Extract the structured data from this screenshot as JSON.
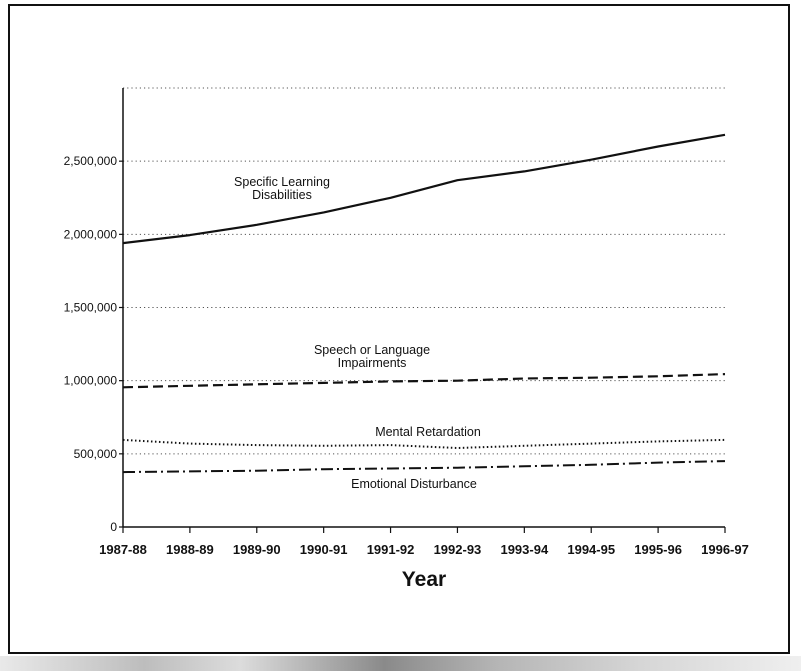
{
  "chart_data": {
    "type": "line",
    "title": "",
    "xlabel": "Year",
    "ylabel": "",
    "categories": [
      "1987-88",
      "1988-89",
      "1989-90",
      "1990-91",
      "1991-92",
      "1992-93",
      "1993-94",
      "1994-95",
      "1995-96",
      "1996-97"
    ],
    "ylim": [
      0,
      3000000
    ],
    "yticks": [
      0,
      500000,
      1000000,
      1500000,
      2000000,
      2500000
    ],
    "ytick_labels": [
      "0",
      "500,000",
      "1,000,000",
      "1,500,000",
      "2,000,000",
      "2,500,000"
    ],
    "grid": true,
    "legend": "none",
    "series": [
      {
        "name": "Specific Learning Disabilities",
        "annotation_lines": [
          "Specific Learning",
          "Disabilities"
        ],
        "style": "solid",
        "values": [
          1940000,
          1995000,
          2065000,
          2150000,
          2250000,
          2370000,
          2430000,
          2510000,
          2600000,
          2680000
        ]
      },
      {
        "name": "Speech or Language Impairments",
        "annotation_lines": [
          "Speech or Language",
          "Impairments"
        ],
        "style": "dashed",
        "values": [
          955000,
          965000,
          975000,
          985000,
          995000,
          1000000,
          1015000,
          1020000,
          1030000,
          1045000
        ]
      },
      {
        "name": "Mental Retardation",
        "annotation_lines": [
          "Mental Retardation"
        ],
        "style": "dotted",
        "values": [
          595000,
          570000,
          560000,
          555000,
          560000,
          540000,
          555000,
          570000,
          585000,
          595000
        ]
      },
      {
        "name": "Emotional Disturbance",
        "annotation_lines": [
          "Emotional Disturbance"
        ],
        "style": "dashdot",
        "values": [
          375000,
          380000,
          385000,
          395000,
          400000,
          405000,
          415000,
          425000,
          440000,
          450000
        ]
      }
    ],
    "colors": {
      "line": "#111111",
      "grid": "#555555"
    }
  }
}
